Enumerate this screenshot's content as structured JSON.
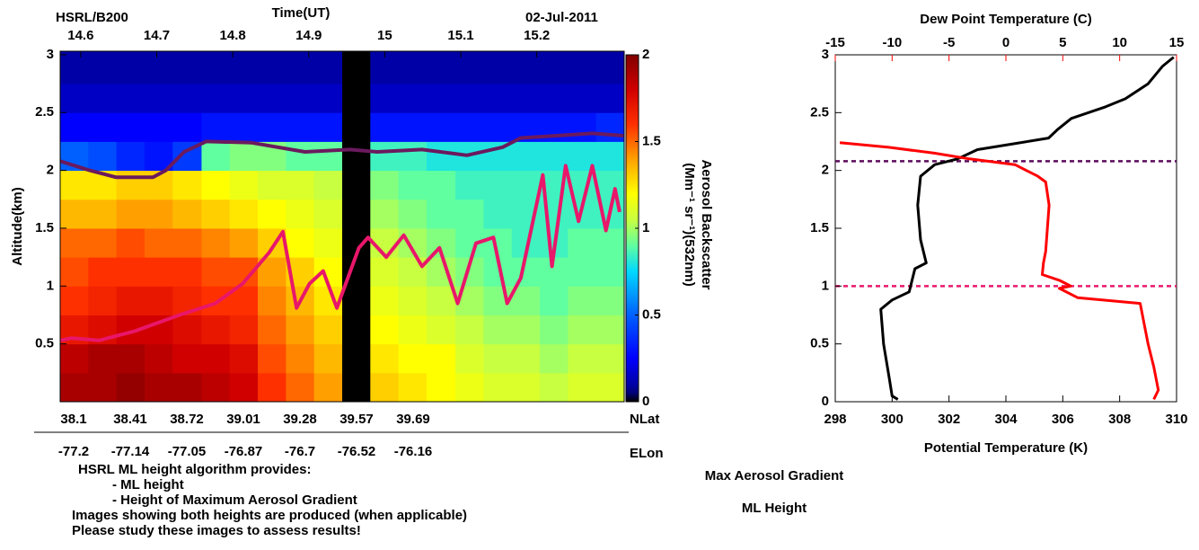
{
  "chart_data": [
    {
      "type": "heatmap",
      "title": "HSRL/B200",
      "xlabel": "Time(UT)",
      "date": "02-Jul-2011",
      "ylabel": "Altitude(km)",
      "xlim": [
        14.573,
        15.315
      ],
      "xticks": [
        14.6,
        14.7,
        14.8,
        14.9,
        15,
        15.1,
        15.2
      ],
      "ylim": [
        0,
        3.03
      ],
      "yticks": [
        0.5,
        1,
        1.5,
        2,
        2.5,
        3
      ],
      "x_edges": [
        14.573,
        14.61,
        14.647,
        14.684,
        14.721,
        14.759,
        14.796,
        14.833,
        14.87,
        14.907,
        14.944,
        14.981,
        15.018,
        15.055,
        15.093,
        15.13,
        15.167,
        15.204,
        15.241,
        15.278,
        15.315
      ],
      "y_edges": [
        0,
        0.25,
        0.5,
        0.75,
        1,
        1.25,
        1.5,
        1.75,
        2,
        2.25,
        2.5,
        2.75,
        3.03
      ],
      "z": [
        [
          1.9,
          1.9,
          1.95,
          1.9,
          1.9,
          1.85,
          1.8,
          1.6,
          1.5,
          1.4,
          null,
          1.3,
          1.25,
          1.2,
          1.15,
          1.1,
          1.1,
          1.05,
          1.1,
          1.1
        ],
        [
          1.85,
          1.9,
          1.9,
          1.85,
          1.8,
          1.8,
          1.75,
          1.55,
          1.45,
          1.35,
          null,
          1.25,
          1.2,
          1.2,
          1.1,
          1.05,
          1.05,
          1.0,
          1.05,
          1.05
        ],
        [
          1.7,
          1.75,
          1.8,
          1.8,
          1.75,
          1.7,
          1.65,
          1.5,
          1.4,
          1.3,
          null,
          1.2,
          1.15,
          1.1,
          1.05,
          1.0,
          1.0,
          0.95,
          1.0,
          1.0
        ],
        [
          1.6,
          1.65,
          1.7,
          1.7,
          1.65,
          1.6,
          1.6,
          1.45,
          1.35,
          1.25,
          null,
          1.15,
          1.1,
          1.05,
          1.0,
          0.95,
          0.95,
          0.9,
          0.95,
          0.95
        ],
        [
          1.55,
          1.6,
          1.6,
          1.6,
          1.6,
          1.55,
          1.55,
          1.4,
          1.3,
          1.2,
          null,
          1.1,
          1.05,
          1.0,
          0.95,
          0.9,
          0.9,
          0.9,
          0.9,
          0.9
        ],
        [
          1.5,
          1.5,
          1.55,
          1.5,
          1.5,
          1.45,
          1.4,
          1.3,
          1.2,
          1.15,
          null,
          1.05,
          1.0,
          0.95,
          0.9,
          0.9,
          0.85,
          0.85,
          0.9,
          0.9
        ],
        [
          1.35,
          1.35,
          1.4,
          1.4,
          1.35,
          1.3,
          1.25,
          1.2,
          1.15,
          1.1,
          null,
          1.0,
          0.95,
          0.9,
          0.9,
          0.85,
          0.85,
          0.85,
          0.85,
          0.85
        ],
        [
          1.25,
          1.25,
          1.3,
          1.3,
          1.25,
          1.2,
          1.15,
          1.1,
          1.1,
          1.05,
          null,
          0.95,
          0.9,
          0.9,
          0.85,
          0.85,
          0.85,
          0.85,
          0.85,
          0.85
        ],
        [
          0.5,
          0.45,
          0.35,
          0.3,
          0.4,
          0.9,
          0.95,
          0.95,
          0.9,
          0.9,
          null,
          0.85,
          0.85,
          0.8,
          0.8,
          0.8,
          0.8,
          0.8,
          0.8,
          0.8
        ],
        [
          0.25,
          0.25,
          0.25,
          0.25,
          0.25,
          0.3,
          0.3,
          0.3,
          0.3,
          0.3,
          null,
          0.3,
          0.3,
          0.3,
          0.3,
          0.3,
          0.3,
          0.3,
          0.3,
          0.35
        ],
        [
          0.15,
          0.15,
          0.15,
          0.15,
          0.15,
          0.15,
          0.15,
          0.15,
          0.15,
          0.15,
          null,
          0.15,
          0.15,
          0.15,
          0.15,
          0.15,
          0.15,
          0.15,
          0.15,
          0.15
        ],
        [
          0.1,
          0.1,
          0.1,
          0.1,
          0.1,
          0.1,
          0.1,
          0.1,
          0.1,
          0.1,
          null,
          0.1,
          0.1,
          0.1,
          0.1,
          0.1,
          0.1,
          0.1,
          0.1,
          0.1
        ]
      ],
      "clim": [
        0,
        2
      ],
      "cticks": [
        0,
        0.5,
        1,
        1.5,
        2
      ],
      "clabel": [
        "Aerosol Backscatter",
        "(Mm⁻¹ sr⁻¹)(532nm)"
      ],
      "nlat_label": "NLat",
      "nlat_ticks": [
        38.1,
        38.41,
        38.72,
        39.01,
        39.28,
        39.57,
        39.69
      ],
      "elon_label": "ELon",
      "elon_ticks": [
        -77.2,
        -77.14,
        -77.05,
        -76.87,
        -76.7,
        -76.52,
        -76.16
      ],
      "lines": [
        {
          "color": "#e8176a",
          "x": [
            14.573,
            14.588,
            14.624,
            14.671,
            14.73,
            14.777,
            14.813,
            14.848,
            14.866,
            14.884,
            14.901,
            14.919,
            14.937,
            14.966,
            14.978,
            15.002,
            15.025,
            15.049,
            15.072,
            15.096,
            15.12,
            15.143,
            15.161,
            15.179,
            15.208,
            15.22,
            15.238,
            15.255,
            15.273,
            15.291,
            15.303,
            15.309
          ],
          "y": [
            0.53,
            0.55,
            0.53,
            0.61,
            0.75,
            0.85,
            1.02,
            1.29,
            1.47,
            0.81,
            1.02,
            1.13,
            0.81,
            1.33,
            1.42,
            1.25,
            1.44,
            1.17,
            1.33,
            0.85,
            1.37,
            1.42,
            0.85,
            1.07,
            1.96,
            1.17,
            2.04,
            1.56,
            2.04,
            1.48,
            1.84,
            1.64
          ]
        },
        {
          "color": "#6b1a5e",
          "x": [
            14.573,
            14.612,
            14.647,
            14.695,
            14.712,
            14.736,
            14.765,
            14.824,
            14.895,
            14.954,
            14.99,
            15.049,
            15.108,
            15.155,
            15.179,
            15.226,
            15.273,
            15.314
          ],
          "y": [
            2.08,
            2.0,
            1.94,
            1.94,
            2.0,
            2.16,
            2.25,
            2.24,
            2.16,
            2.18,
            2.16,
            2.18,
            2.13,
            2.2,
            2.28,
            2.3,
            2.32,
            2.3
          ]
        }
      ]
    },
    {
      "type": "profile",
      "xlabel": "Potential Temperature (K)",
      "x2label": "Dew Point Temperature (C)",
      "xlim": [
        298,
        310
      ],
      "xticks": [
        298,
        300,
        302,
        304,
        306,
        308,
        310
      ],
      "x2lim": [
        -15,
        15
      ],
      "x2ticks": [
        -15,
        -10,
        -5,
        0,
        5,
        10,
        15
      ],
      "x2color": "#ff0000",
      "ylim": [
        0,
        3
      ],
      "yticks": [
        0,
        0.5,
        1,
        1.5,
        2,
        2.5,
        3
      ],
      "series": [
        {
          "color": "#000000",
          "x": [
            300.2,
            300,
            299.9,
            299.7,
            299.6,
            300,
            300.6,
            300.7,
            300.8,
            301.2,
            301,
            300.9,
            301,
            301.5,
            302.3,
            303,
            304,
            305.5,
            305.8,
            306.3,
            307.5,
            308.2,
            309,
            309.5,
            309.9
          ],
          "y": [
            0.02,
            0.05,
            0.2,
            0.5,
            0.8,
            0.88,
            0.95,
            1.05,
            1.15,
            1.2,
            1.4,
            1.7,
            1.95,
            2.05,
            2.1,
            2.18,
            2.22,
            2.28,
            2.35,
            2.45,
            2.55,
            2.62,
            2.75,
            2.9,
            2.98
          ]
        },
        {
          "color": "#ff0000",
          "axis": "x2",
          "x": [
            13.0,
            13.4,
            13.0,
            12.5,
            11.8,
            6.3,
            4.7,
            5.7,
            4.7,
            3.2,
            3.3,
            3.5,
            3.8,
            3.5,
            2.8,
            0.8,
            -3.2,
            -6.3,
            -10.3,
            -14.6
          ],
          "y": [
            0.02,
            0.1,
            0.3,
            0.5,
            0.85,
            0.9,
            0.98,
            1.0,
            1.05,
            1.1,
            1.2,
            1.3,
            1.7,
            1.9,
            1.95,
            2.05,
            2.1,
            2.15,
            2.2,
            2.24
          ]
        }
      ],
      "hlines": [
        {
          "name": "Max Aerosol Gradient",
          "color": "#5c0b5c",
          "value": 2.08
        },
        {
          "name": "ML Height",
          "color": "#e6196e",
          "value": 1.0
        }
      ]
    }
  ],
  "notes": [
    "HSRL ML height algorithm provides:",
    "- ML height",
    "- Height of Maximum Aerosol Gradient",
    "Images showing both heights are produced (when applicable)",
    "Please study these images to assess results!"
  ]
}
